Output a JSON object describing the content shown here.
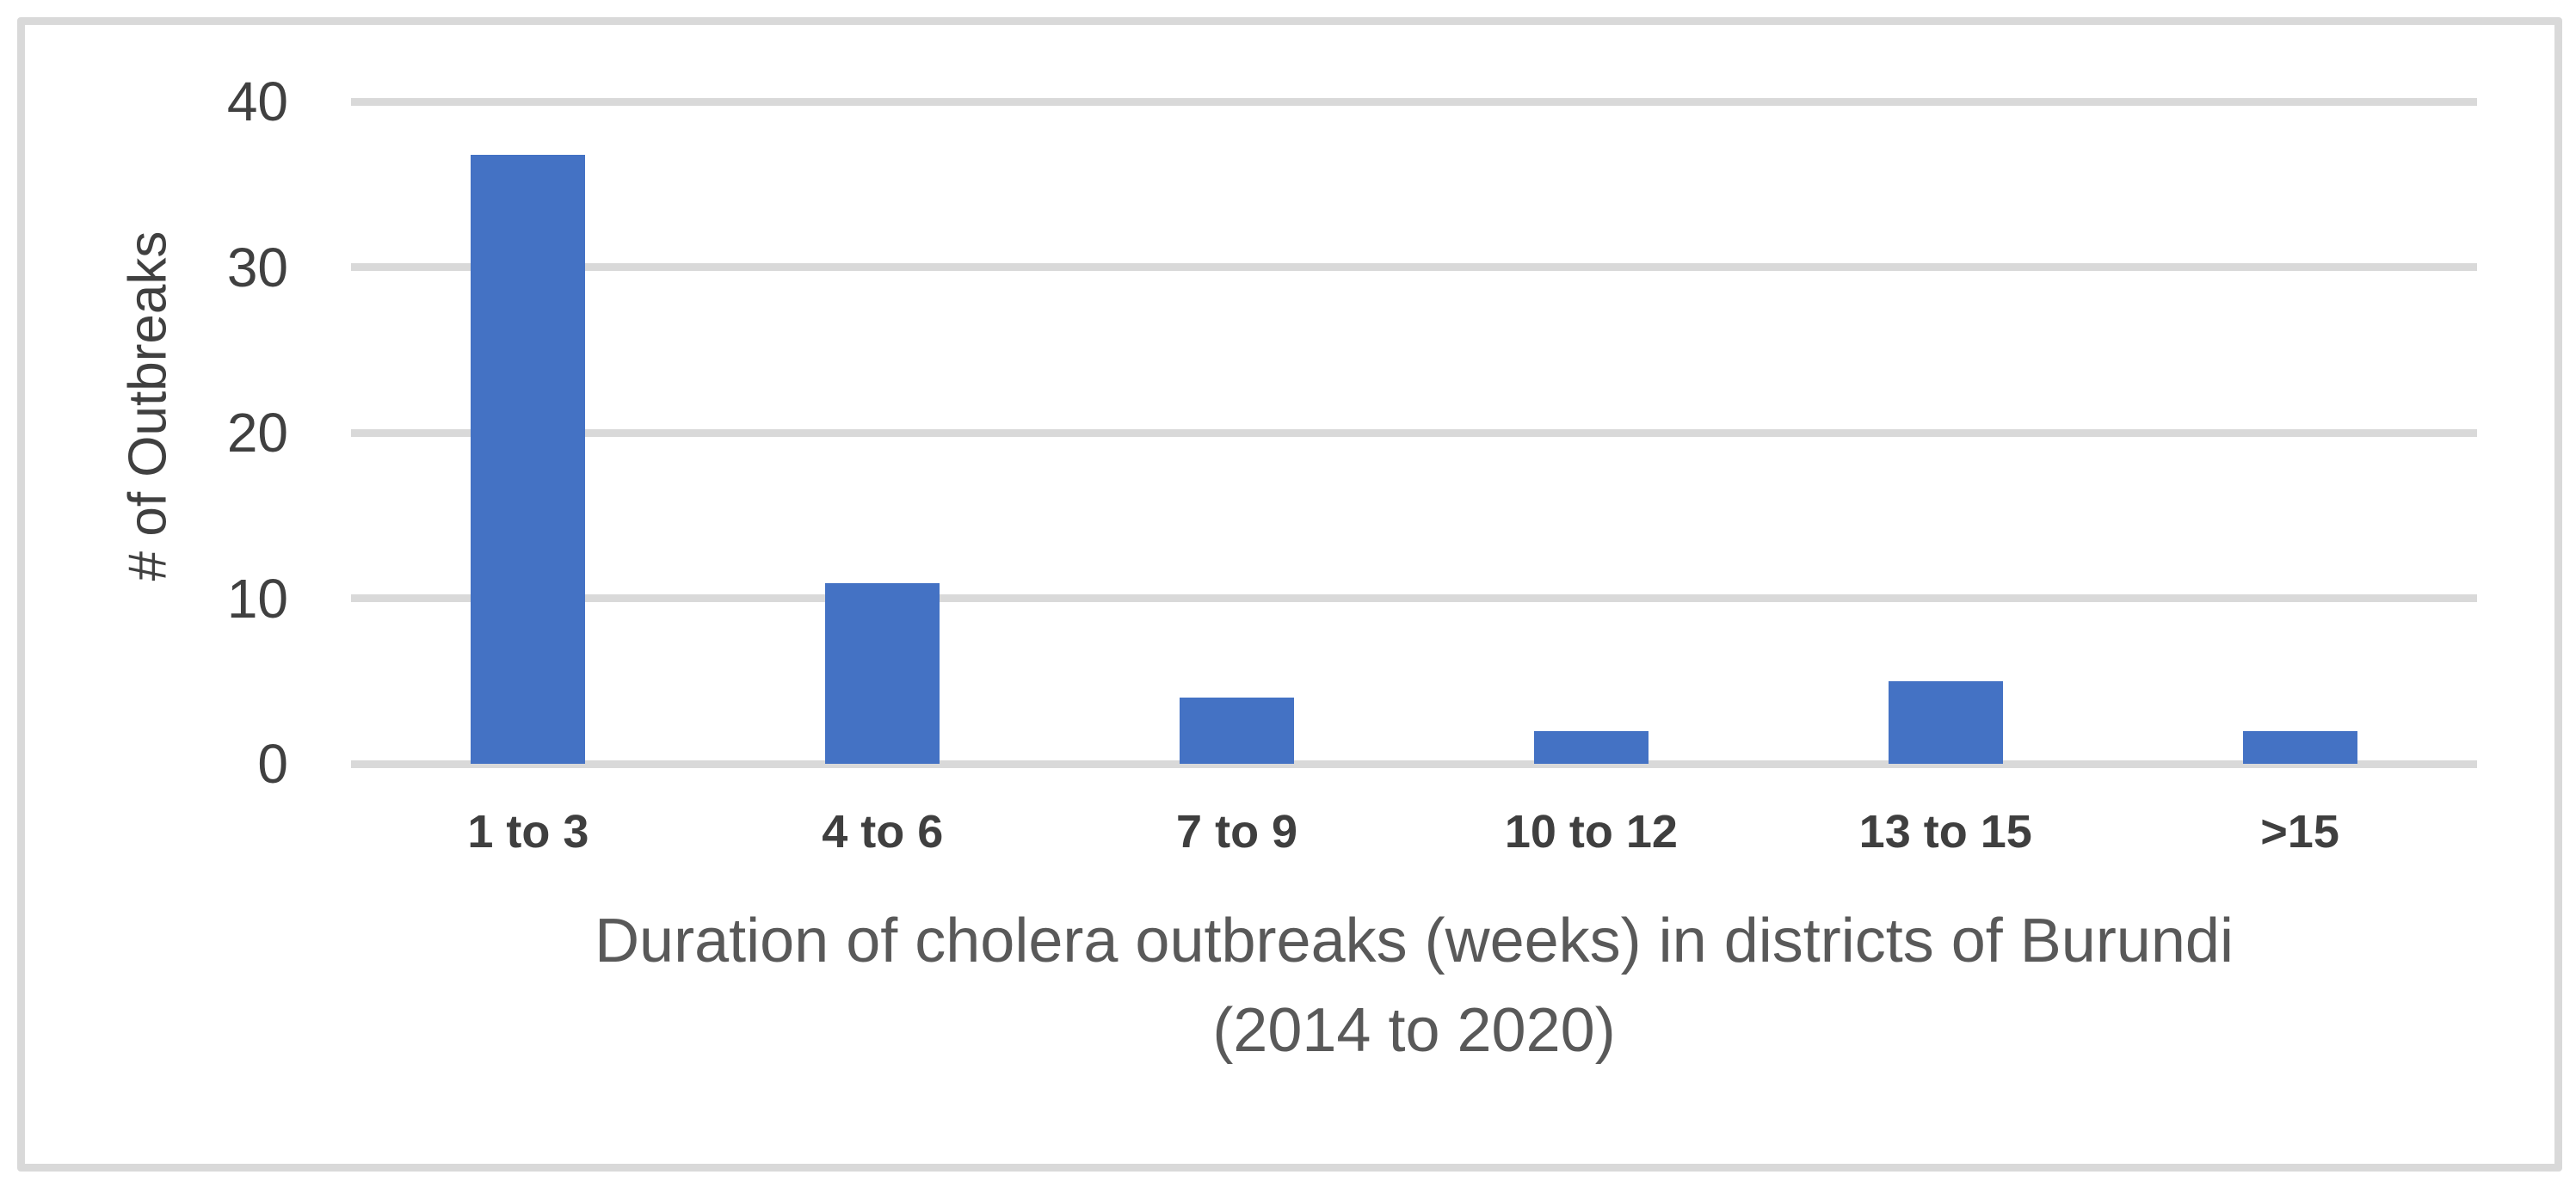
{
  "chart_data": {
    "type": "bar",
    "categories": [
      "1 to 3",
      "4 to 6",
      "7 to 9",
      "10 to 12",
      "13 to 15",
      ">15"
    ],
    "values": [
      37,
      11,
      4,
      2,
      5,
      2
    ],
    "title": "",
    "xlabel": "Duration of cholera outbreaks (weeks) in districts of Burundi (2014 to 2020)",
    "xlabel_lines": [
      "Duration of cholera outbreaks (weeks) in districts of Burundi",
      "(2014 to 2020)"
    ],
    "ylabel": "# of Outbreaks",
    "ylim": [
      0,
      40
    ],
    "yticks": [
      0,
      10,
      20,
      30,
      40
    ],
    "grid": true,
    "legend": false,
    "colors": {
      "bar": "#4472C4",
      "gridline": "#D9D9D9",
      "axis_line": "#D9D9D9",
      "chart_border": "#D9D9D9",
      "y_tick_label": "#404040",
      "x_category_label": "#3F3F3F",
      "y_axis_title": "#404040",
      "x_axis_title": "#595959",
      "background": "#FFFFFF"
    }
  }
}
